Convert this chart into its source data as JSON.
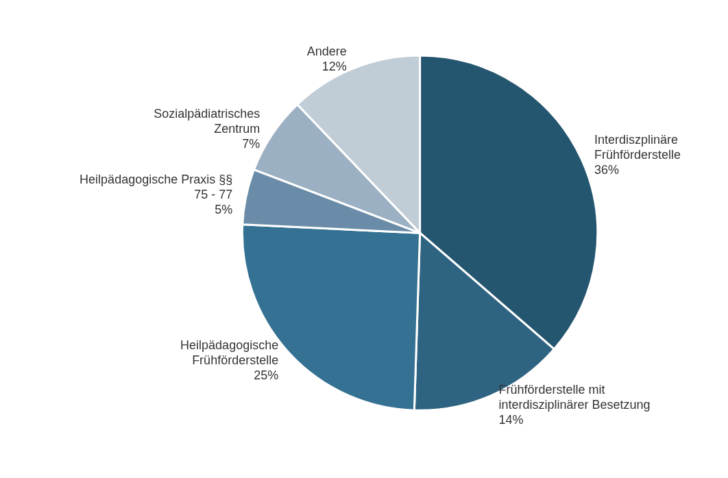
{
  "chart_data": {
    "type": "pie",
    "categories": [
      "Interdiszplinäre\nFrühförderstelle",
      "Frühförderstelle mit\ninterdisziplinärer Besetzung",
      "Heilpädagogische\nFrühförderstelle",
      "Heilpädagogische Praxis §§\n75 - 77",
      "Sozialpädiatrisches\nZentrum",
      "Andere"
    ],
    "values": [
      36,
      14,
      25,
      5,
      7,
      12
    ],
    "value_labels": [
      "36%",
      "14%",
      "25%",
      "5%",
      "7%",
      "12%"
    ],
    "colors": [
      "#25566f",
      "#2e6482",
      "#347193",
      "#6a8ca8",
      "#9bb0c2",
      "#c0ccd6"
    ]
  }
}
